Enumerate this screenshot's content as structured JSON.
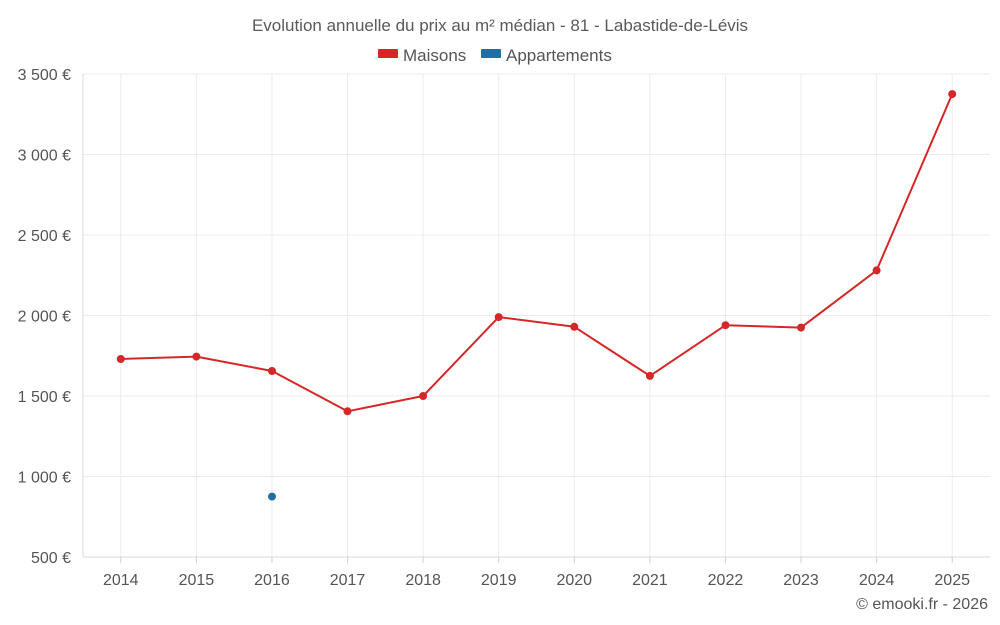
{
  "chart_data": {
    "type": "line",
    "title": "Evolution annuelle du prix au m² médian - 81 - Labastide-de-Lévis",
    "categories": [
      "2014",
      "2015",
      "2016",
      "2017",
      "2018",
      "2019",
      "2020",
      "2021",
      "2022",
      "2023",
      "2024",
      "2025"
    ],
    "series": [
      {
        "name": "Maisons",
        "color": "#d62728",
        "values": [
          1730,
          1745,
          1655,
          1405,
          1500,
          1990,
          1930,
          1625,
          1940,
          1925,
          2280,
          3375
        ]
      },
      {
        "name": "Appartements",
        "color": "#1f6fa5",
        "values": [
          null,
          null,
          875,
          null,
          null,
          null,
          null,
          null,
          null,
          null,
          null,
          null
        ]
      }
    ],
    "y_ticks": [
      500,
      1000,
      1500,
      2000,
      2500,
      3000,
      3500
    ],
    "y_tick_labels": [
      "500 €",
      "1 000 €",
      "1 500 €",
      "2 000 €",
      "2 500 €",
      "3 000 €",
      "3 500 €"
    ],
    "ylim": [
      500,
      3500
    ],
    "grid": true,
    "legend_position": "top-center",
    "xlabel": "",
    "ylabel": ""
  },
  "credit": "© emooki.fr - 2026"
}
